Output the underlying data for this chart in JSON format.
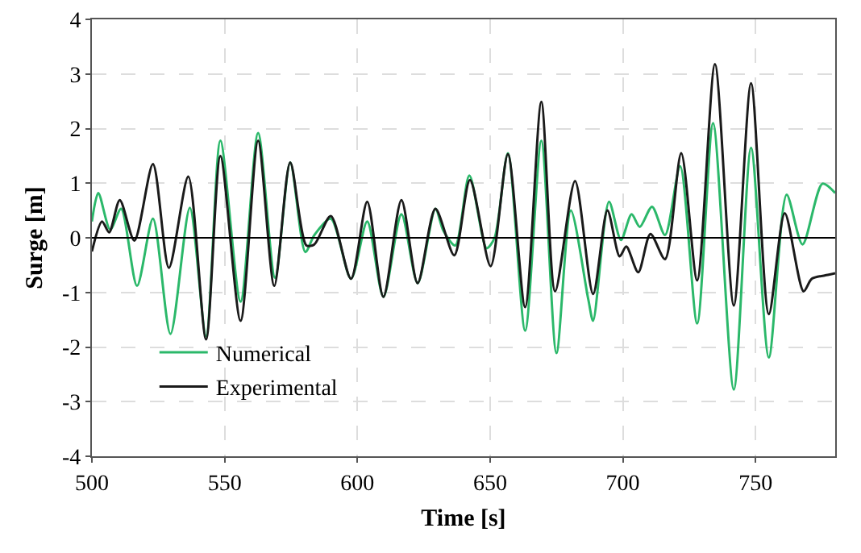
{
  "chart_data": {
    "type": "line",
    "xlabel": "Time [s]",
    "ylabel": "Surge [m]",
    "xlim": [
      500,
      780
    ],
    "xticks": [
      500,
      550,
      600,
      650,
      700,
      750
    ],
    "ylim": [
      -4,
      4
    ],
    "yticks": [
      -4,
      -3,
      -2,
      -1,
      0,
      1,
      2,
      3,
      4
    ],
    "grid": true,
    "legend": "bottom left",
    "line_style": "solid",
    "marker": "none",
    "ref_lines": [
      {
        "axis": "y",
        "value": 0,
        "color": "#000000"
      }
    ],
    "series": [
      {
        "name": "Numerical",
        "color": "#2bb86a",
        "x": [
          500,
          502.4,
          506.9,
          511,
          517,
          523,
          529.6,
          536.9,
          543,
          548.4,
          556,
          562.6,
          569,
          574.7,
          580.4,
          583.8,
          590,
          597.6,
          603.7,
          609.8,
          616.6,
          622.7,
          629.4,
          632.4,
          636.9,
          642.2,
          648.7,
          651.7,
          656.7,
          663.2,
          669.3,
          675,
          680.4,
          687,
          688.8,
          694.8,
          699.3,
          703.3,
          706.4,
          711,
          715.9,
          721.6,
          728,
          734,
          741.8,
          748.3,
          755,
          761.7,
          767.7,
          775.2,
          780
        ],
        "values": [
          0.3,
          0.82,
          0.15,
          0.53,
          -0.88,
          0.35,
          -1.76,
          0.55,
          -1.8,
          1.78,
          -1.17,
          1.92,
          -0.73,
          1.38,
          -0.26,
          0.05,
          0.35,
          -0.75,
          0.3,
          -1.08,
          0.43,
          -0.83,
          0.53,
          0.13,
          -0.14,
          1.14,
          -0.19,
          0,
          1.55,
          -1.7,
          1.78,
          -2.11,
          0.5,
          -1.13,
          -1.52,
          0.66,
          -0.04,
          0.43,
          0.2,
          0.57,
          0.05,
          1.31,
          -1.57,
          2.1,
          -2.78,
          1.65,
          -2.19,
          0.79,
          -0.12,
          0.99,
          0.82
        ]
      },
      {
        "name": "Experimental",
        "color": "#1a1a1a",
        "x": [
          500,
          503.8,
          506.5,
          510.5,
          516,
          523,
          529,
          536.3,
          543,
          548.4,
          556,
          562.6,
          568.7,
          574.7,
          580.8,
          583.8,
          590,
          597.6,
          603.7,
          609.8,
          616.6,
          622.7,
          629.4,
          636.5,
          642.4,
          650.2,
          656.7,
          663.2,
          669.3,
          674.5,
          682,
          688.8,
          694.2,
          698.8,
          701.3,
          705.8,
          710.4,
          715.9,
          722,
          728,
          734.7,
          741.8,
          748.3,
          755,
          761,
          768.1,
          771.2,
          777.2,
          780
        ],
        "values": [
          -0.25,
          0.3,
          0.1,
          0.69,
          -0.05,
          1.35,
          -0.55,
          1.12,
          -1.86,
          1.5,
          -1.52,
          1.78,
          -0.88,
          1.38,
          -0.14,
          -0.12,
          0.4,
          -0.75,
          0.66,
          -1.08,
          0.69,
          -0.83,
          0.53,
          -0.32,
          1.06,
          -0.52,
          1.53,
          -1.27,
          2.49,
          -0.98,
          1.04,
          -1.03,
          0.5,
          -0.34,
          -0.16,
          -0.63,
          0.07,
          -0.39,
          1.55,
          -0.78,
          3.18,
          -1.24,
          2.83,
          -1.4,
          0.45,
          -0.98,
          -0.75,
          -0.68,
          -0.65
        ]
      }
    ]
  }
}
